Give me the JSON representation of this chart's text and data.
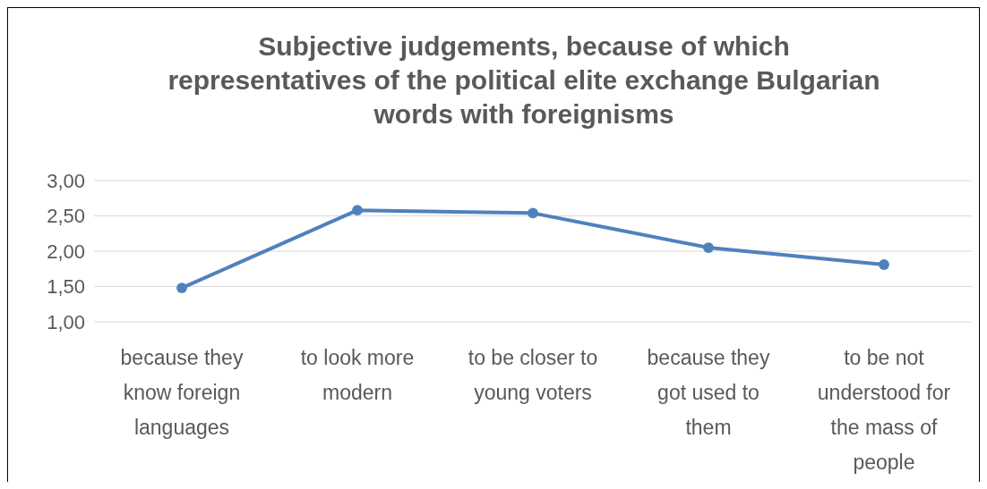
{
  "chart_data": {
    "type": "line",
    "title": "Subjective judgements, because of which representatives of the political elite exchange Bulgarian words with foreignisms",
    "categories": [
      "because they know foreign languages",
      "to look more modern",
      "to be closer to young voters",
      "because they got used to them",
      "to be not understood for the mass of people"
    ],
    "series": [
      {
        "color": "#4f81bd",
        "values": [
          1.48,
          2.58,
          2.54,
          2.05,
          1.81
        ]
      }
    ],
    "ylim": [
      1,
      3
    ],
    "yticks": [
      {
        "value": 1,
        "label": "1,00"
      },
      {
        "value": 1.5,
        "label": "1,50"
      },
      {
        "value": 2,
        "label": "2,00"
      },
      {
        "value": 2.5,
        "label": "2,50"
      },
      {
        "value": 3,
        "label": "3,00"
      }
    ],
    "grid": "y",
    "marker": "circle"
  }
}
